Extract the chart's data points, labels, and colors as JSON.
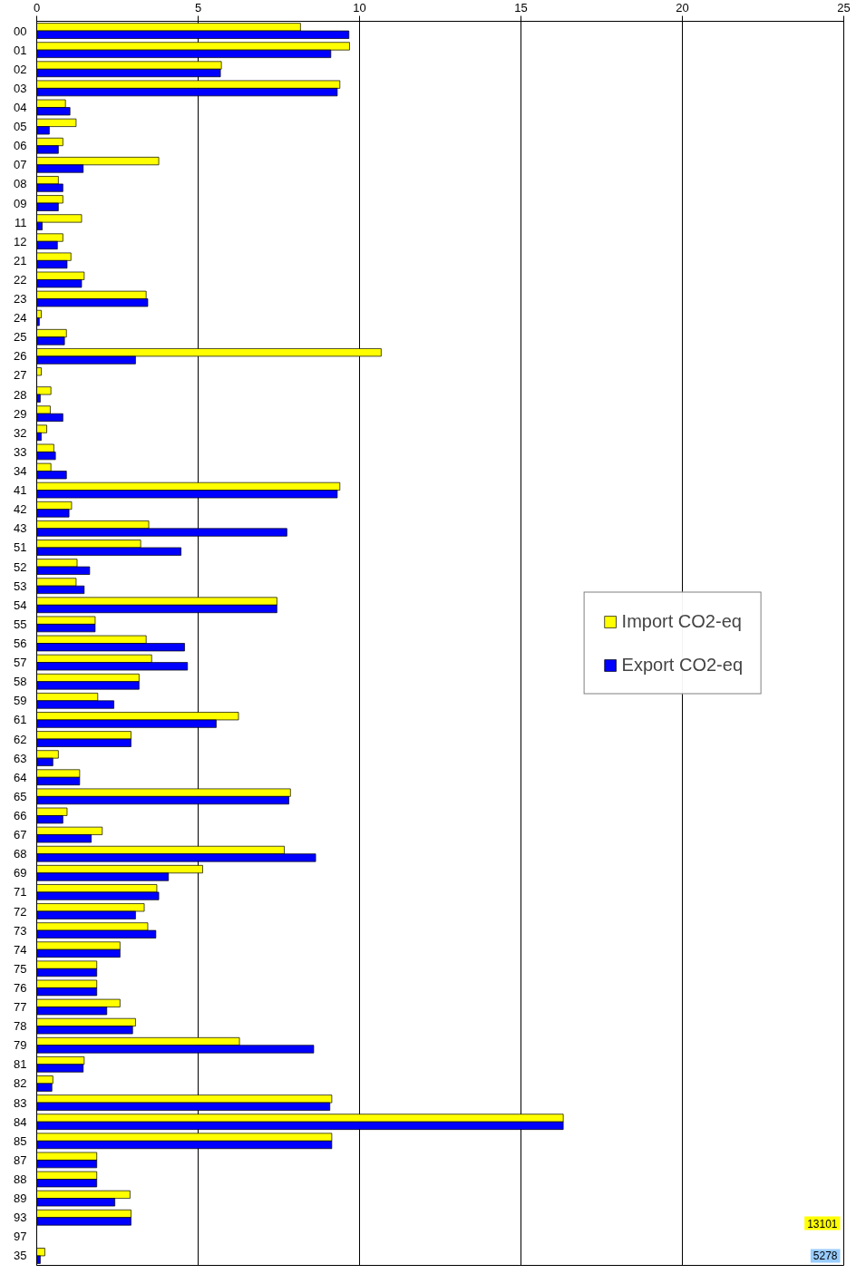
{
  "chart_data": {
    "type": "bar",
    "orientation": "horizontal",
    "categories": [
      "00",
      "01",
      "02",
      "03",
      "04",
      "05",
      "06",
      "07",
      "08",
      "09",
      "11",
      "12",
      "21",
      "22",
      "23",
      "24",
      "25",
      "26",
      "27",
      "28",
      "29",
      "32",
      "33",
      "34",
      "41",
      "42",
      "43",
      "51",
      "52",
      "53",
      "54",
      "55",
      "56",
      "57",
      "58",
      "59",
      "61",
      "62",
      "63",
      "64",
      "65",
      "66",
      "67",
      "68",
      "69",
      "71",
      "72",
      "73",
      "74",
      "75",
      "76",
      "77",
      "78",
      "79",
      "81",
      "82",
      "83",
      "84",
      "85",
      "87",
      "88",
      "89",
      "93",
      "97",
      "35"
    ],
    "series": [
      {
        "name": "Import CO2-eq",
        "color": "#ffff00",
        "values": [
          8.17,
          9.69,
          5.72,
          9.39,
          0.89,
          1.22,
          0.81,
          3.78,
          0.67,
          0.81,
          1.39,
          0.81,
          1.06,
          1.47,
          3.39,
          0.14,
          0.92,
          10.67,
          0.14,
          0.44,
          0.42,
          0.31,
          0.53,
          0.44,
          9.39,
          1.08,
          3.47,
          3.22,
          1.25,
          1.22,
          7.44,
          1.81,
          3.39,
          3.56,
          3.17,
          1.89,
          6.25,
          2.92,
          0.67,
          1.33,
          7.86,
          0.94,
          2.03,
          7.67,
          5.14,
          3.72,
          3.33,
          3.44,
          2.58,
          1.86,
          1.86,
          2.58,
          3.06,
          6.28,
          1.47,
          0.5,
          9.14,
          16.31,
          9.14,
          1.86,
          1.86,
          2.89,
          2.92,
          null,
          0.25
        ],
        "value_labels": [
          null,
          null,
          null,
          null,
          null,
          null,
          null,
          null,
          null,
          null,
          null,
          null,
          null,
          null,
          null,
          null,
          null,
          null,
          null,
          null,
          null,
          null,
          null,
          null,
          null,
          null,
          null,
          null,
          null,
          null,
          null,
          null,
          null,
          null,
          null,
          null,
          null,
          null,
          null,
          null,
          null,
          null,
          null,
          null,
          null,
          null,
          null,
          null,
          null,
          null,
          null,
          null,
          null,
          null,
          null,
          null,
          null,
          null,
          null,
          null,
          null,
          null,
          null,
          null,
          null
        ]
      },
      {
        "name": "Export CO2-eq",
        "color": "#0000ff",
        "values": [
          9.67,
          9.11,
          5.69,
          9.31,
          1.03,
          0.39,
          0.67,
          1.44,
          0.81,
          0.67,
          0.17,
          0.64,
          0.94,
          1.39,
          3.44,
          0.08,
          0.86,
          3.06,
          0,
          0.11,
          0.81,
          0.14,
          0.58,
          0.92,
          9.31,
          1.0,
          7.75,
          4.47,
          1.64,
          1.47,
          7.44,
          1.81,
          4.58,
          4.67,
          3.17,
          2.39,
          5.56,
          2.92,
          0.5,
          1.33,
          7.81,
          0.81,
          1.69,
          8.64,
          4.08,
          3.78,
          3.06,
          3.69,
          2.58,
          1.86,
          1.86,
          2.17,
          2.97,
          8.58,
          1.44,
          0.47,
          9.08,
          16.31,
          9.14,
          1.86,
          1.86,
          2.42,
          2.92,
          null,
          0.11
        ],
        "value_labels": [
          null,
          null,
          null,
          null,
          null,
          null,
          null,
          null,
          null,
          null,
          null,
          null,
          null,
          null,
          null,
          null,
          null,
          null,
          null,
          null,
          null,
          null,
          null,
          null,
          null,
          null,
          null,
          null,
          null,
          null,
          null,
          null,
          null,
          null,
          null,
          null,
          null,
          null,
          null,
          null,
          null,
          null,
          null,
          null,
          null,
          null,
          null,
          null,
          null,
          null,
          null,
          null,
          null,
          null,
          null,
          null,
          null,
          null,
          null,
          null,
          null,
          null,
          null,
          null,
          null
        ]
      }
    ],
    "annotations": [
      "13101",
      "5278"
    ],
    "xlim": [
      0,
      25
    ],
    "xticks": [
      0,
      5,
      10,
      15,
      20,
      25
    ],
    "grid": "x",
    "legend": "right"
  }
}
